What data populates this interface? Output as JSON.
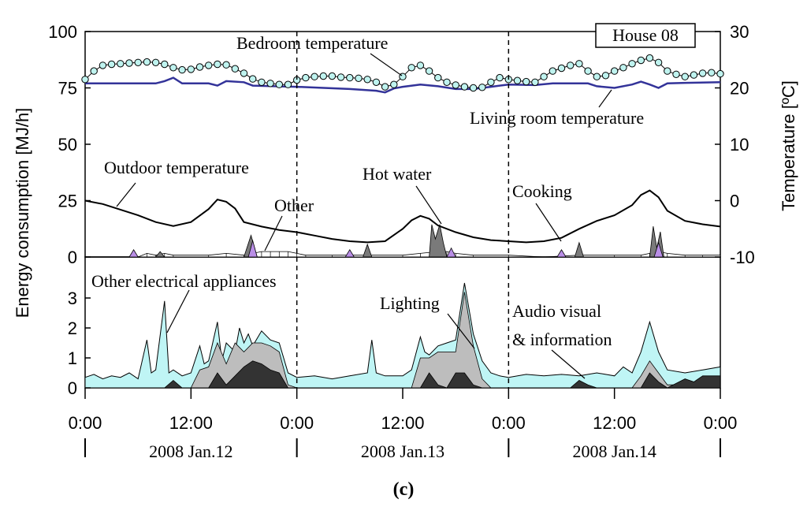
{
  "figure_label": "(c)",
  "chart_data": {
    "type": "area",
    "house_label": "House 08",
    "ylabel_left": "Energy consumption [MJ/h]",
    "ylabel_right": "Temperature [ºC]",
    "x_unit": "hours since 2008 Jan.12 0:00",
    "xlim": [
      0,
      72
    ],
    "x_tick_labels": [
      "0:00",
      "12:00",
      "0:00",
      "12:00",
      "0:00",
      "12:00",
      "0:00"
    ],
    "day_labels": [
      "2008 Jan.12",
      "2008 Jan.13",
      "2008 Jan.14"
    ],
    "day_boundaries_hours": [
      24,
      48
    ],
    "colors": {
      "bedroom_line": "#000000",
      "bedroom_marker": "#bff3ef",
      "living_line": "#333399",
      "outdoor_line": "#000000",
      "cooking_fill": "#b98ee6",
      "hot_water_fill": "#7a7a7a",
      "other_fill": "#ffffff",
      "lighting_fill": "#bdbdbd",
      "audio_fill": "#333333",
      "other_elec_fill": "#bff5f5"
    },
    "upper": {
      "ylim_left": [
        0,
        100
      ],
      "yticks_left": [
        "0",
        "25",
        "50",
        "75",
        "100"
      ],
      "ylim_right": [
        -10,
        30
      ],
      "yticks_right": [
        "-10",
        "0",
        "10",
        "20",
        "30"
      ],
      "labels": {
        "bedroom": "Bedroom temperature",
        "living": "Living room temperature",
        "outdoor": "Outdoor temperature",
        "hot_water": "Hot water",
        "other": "Other",
        "cooking": "Cooking"
      },
      "bedroom_temp": [
        [
          0,
          21.5
        ],
        [
          1,
          23
        ],
        [
          2,
          24
        ],
        [
          3,
          24.2
        ],
        [
          4,
          24.3
        ],
        [
          5,
          24.4
        ],
        [
          6,
          24.5
        ],
        [
          7,
          24.6
        ],
        [
          8,
          24.5
        ],
        [
          9,
          24.2
        ],
        [
          10,
          23.6
        ],
        [
          11,
          23.2
        ],
        [
          12,
          23.3
        ],
        [
          13,
          23.7
        ],
        [
          14,
          24
        ],
        [
          15,
          24.2
        ],
        [
          16,
          24.1
        ],
        [
          17,
          23.4
        ],
        [
          18,
          22.6
        ],
        [
          19,
          21.6
        ],
        [
          20,
          21.0
        ],
        [
          21,
          20.8
        ],
        [
          22,
          20.6
        ],
        [
          23,
          20.6
        ],
        [
          24,
          21.4
        ],
        [
          25,
          21.8
        ],
        [
          26,
          22.0
        ],
        [
          27,
          22.1
        ],
        [
          28,
          22.1
        ],
        [
          29,
          21.9
        ],
        [
          30,
          21.8
        ],
        [
          31,
          21.7
        ],
        [
          32,
          21.5
        ],
        [
          33,
          21.0
        ],
        [
          34,
          20.2
        ],
        [
          35,
          20.6
        ],
        [
          36,
          22.0
        ],
        [
          37,
          23.6
        ],
        [
          38,
          24.0
        ],
        [
          39,
          23.0
        ],
        [
          40,
          21.8
        ],
        [
          41,
          21.0
        ],
        [
          42,
          20.5
        ],
        [
          43,
          20.2
        ],
        [
          44,
          20.0
        ],
        [
          45,
          20.1
        ],
        [
          46,
          21.0
        ],
        [
          47,
          21.8
        ],
        [
          48,
          21.5
        ],
        [
          49,
          21.3
        ],
        [
          50,
          21.1
        ],
        [
          51,
          21.0
        ],
        [
          52,
          22.0
        ],
        [
          53,
          23.0
        ],
        [
          54,
          23.5
        ],
        [
          55,
          24.0
        ],
        [
          56,
          24.3
        ],
        [
          57,
          23.0
        ],
        [
          58,
          22.0
        ],
        [
          59,
          22.2
        ],
        [
          60,
          23.0
        ],
        [
          61,
          23.6
        ],
        [
          62,
          24.3
        ],
        [
          63,
          24.9
        ],
        [
          64,
          25.3
        ],
        [
          65,
          24.5
        ],
        [
          66,
          23.0
        ],
        [
          67,
          22.4
        ],
        [
          68,
          22.0
        ],
        [
          69,
          22.3
        ],
        [
          70,
          22.6
        ],
        [
          71,
          22.7
        ],
        [
          72,
          22.5
        ]
      ],
      "living_temp": [
        [
          0,
          20.8
        ],
        [
          8,
          20.8
        ],
        [
          9,
          21.2
        ],
        [
          10,
          21.8
        ],
        [
          11,
          20.8
        ],
        [
          14,
          20.8
        ],
        [
          15,
          20.4
        ],
        [
          16,
          21.2
        ],
        [
          18,
          21.0
        ],
        [
          19,
          20.4
        ],
        [
          24,
          20.2
        ],
        [
          30,
          19.8
        ],
        [
          33,
          19.5
        ],
        [
          34,
          19.2
        ],
        [
          35,
          19.9
        ],
        [
          36,
          20.2
        ],
        [
          38,
          20.6
        ],
        [
          40,
          20.3
        ],
        [
          42,
          19.8
        ],
        [
          44,
          19.8
        ],
        [
          46,
          20.2
        ],
        [
          48,
          20.6
        ],
        [
          51,
          20.5
        ],
        [
          53,
          20.8
        ],
        [
          57,
          20.8
        ],
        [
          58,
          20.3
        ],
        [
          60,
          20.0
        ],
        [
          62,
          20.6
        ],
        [
          63,
          21.1
        ],
        [
          64,
          20.6
        ],
        [
          65,
          20.0
        ],
        [
          66,
          20.8
        ],
        [
          68,
          20.9
        ],
        [
          72,
          21.0
        ]
      ],
      "outdoor_temp": [
        [
          0,
          0
        ],
        [
          2,
          -0.6
        ],
        [
          4,
          -1.6
        ],
        [
          6,
          -2.6
        ],
        [
          8,
          -3.8
        ],
        [
          10,
          -4.5
        ],
        [
          12,
          -3.8
        ],
        [
          14,
          -1.5
        ],
        [
          15,
          0.2
        ],
        [
          16,
          -0.2
        ],
        [
          17,
          -1.4
        ],
        [
          18,
          -3.8
        ],
        [
          20,
          -4.6
        ],
        [
          22,
          -5.2
        ],
        [
          24,
          -5.6
        ],
        [
          26,
          -6.2
        ],
        [
          28,
          -6.8
        ],
        [
          30,
          -7.2
        ],
        [
          32,
          -7.4
        ],
        [
          34,
          -7.2
        ],
        [
          36,
          -5.0
        ],
        [
          37,
          -3.5
        ],
        [
          38,
          -2.7
        ],
        [
          39,
          -3.2
        ],
        [
          40,
          -4.4
        ],
        [
          42,
          -5.6
        ],
        [
          44,
          -6.5
        ],
        [
          46,
          -7.0
        ],
        [
          48,
          -7.2
        ],
        [
          50,
          -7.4
        ],
        [
          52,
          -7.2
        ],
        [
          54,
          -6.6
        ],
        [
          56,
          -5.0
        ],
        [
          58,
          -3.6
        ],
        [
          60,
          -2.6
        ],
        [
          62,
          -0.8
        ],
        [
          63,
          1.0
        ],
        [
          64,
          1.8
        ],
        [
          65,
          0.6
        ],
        [
          66,
          -1.8
        ],
        [
          68,
          -3.6
        ],
        [
          70,
          -4.2
        ],
        [
          72,
          -4.6
        ]
      ],
      "cooking": [
        [
          0,
          0
        ],
        [
          5,
          0
        ],
        [
          5.5,
          4
        ],
        [
          6,
          0
        ],
        [
          18.5,
          0
        ],
        [
          19,
          9
        ],
        [
          19.5,
          0
        ],
        [
          29.5,
          0
        ],
        [
          30,
          4
        ],
        [
          30.5,
          0
        ],
        [
          41,
          0
        ],
        [
          41.5,
          5
        ],
        [
          42,
          0
        ],
        [
          53.5,
          0
        ],
        [
          54,
          4
        ],
        [
          54.5,
          0
        ],
        [
          64.5,
          0
        ],
        [
          65,
          8
        ],
        [
          65.5,
          0
        ],
        [
          72,
          0
        ]
      ],
      "hot_water": [
        [
          0,
          0
        ],
        [
          8,
          0
        ],
        [
          8.5,
          3
        ],
        [
          9,
          0
        ],
        [
          18,
          0
        ],
        [
          18.8,
          12
        ],
        [
          19.5,
          0
        ],
        [
          31.5,
          0
        ],
        [
          32,
          7
        ],
        [
          32.5,
          0
        ],
        [
          39,
          0
        ],
        [
          39.3,
          18
        ],
        [
          39.7,
          10
        ],
        [
          40.2,
          18
        ],
        [
          40.6,
          8
        ],
        [
          41,
          0
        ],
        [
          55.5,
          0
        ],
        [
          56,
          8
        ],
        [
          56.5,
          0
        ],
        [
          64,
          0
        ],
        [
          64.4,
          17
        ],
        [
          64.8,
          5
        ],
        [
          65.2,
          14
        ],
        [
          65.6,
          0
        ],
        [
          72,
          0
        ]
      ],
      "other_elec_misc": [
        [
          0,
          0
        ],
        [
          6,
          0
        ],
        [
          7,
          2
        ],
        [
          8,
          1
        ],
        [
          9,
          2
        ],
        [
          10,
          1
        ],
        [
          14,
          1
        ],
        [
          16,
          2
        ],
        [
          18,
          1
        ],
        [
          19,
          2
        ],
        [
          20,
          3
        ],
        [
          21,
          3
        ],
        [
          22,
          3
        ],
        [
          23,
          3
        ],
        [
          24,
          2
        ],
        [
          25,
          1
        ],
        [
          28,
          1
        ],
        [
          30,
          1
        ],
        [
          32,
          1
        ],
        [
          36,
          1
        ],
        [
          38,
          2
        ],
        [
          40,
          3
        ],
        [
          41,
          3
        ],
        [
          42,
          2
        ],
        [
          44,
          1
        ],
        [
          48,
          1
        ],
        [
          52,
          0
        ],
        [
          56,
          1
        ],
        [
          60,
          1
        ],
        [
          63,
          1
        ],
        [
          64,
          2
        ],
        [
          65,
          3
        ],
        [
          66,
          2
        ],
        [
          68,
          1
        ],
        [
          70,
          1
        ],
        [
          72,
          1
        ]
      ]
    },
    "lower": {
      "ylim": [
        0,
        4
      ],
      "yticks": [
        "0",
        "1",
        "2",
        "3"
      ],
      "labels": {
        "other_elec": "Other electrical appliances",
        "lighting": "Lighting",
        "audio_l1": "Audio visual",
        "audio_l2": "& information"
      },
      "total_other_elec": [
        [
          0,
          0.35
        ],
        [
          1,
          0.45
        ],
        [
          2,
          0.3
        ],
        [
          3,
          0.4
        ],
        [
          4,
          0.35
        ],
        [
          5,
          0.5
        ],
        [
          6,
          0.3
        ],
        [
          7,
          1.6
        ],
        [
          7.5,
          0.5
        ],
        [
          8,
          0.6
        ],
        [
          9,
          2.9
        ],
        [
          9.5,
          0.5
        ],
        [
          10,
          0.6
        ],
        [
          11,
          0.4
        ],
        [
          12,
          0.5
        ],
        [
          13,
          1.4
        ],
        [
          13.5,
          0.8
        ],
        [
          14,
          0.9
        ],
        [
          15,
          2.2
        ],
        [
          15.5,
          0.9
        ],
        [
          16,
          1.5
        ],
        [
          17,
          1.2
        ],
        [
          17.5,
          2.0
        ],
        [
          18,
          1.5
        ],
        [
          18.5,
          1.8
        ],
        [
          19,
          1.4
        ],
        [
          20,
          1.9
        ],
        [
          21,
          1.6
        ],
        [
          22,
          1.5
        ],
        [
          23,
          0.5
        ],
        [
          24,
          0.35
        ],
        [
          26,
          0.4
        ],
        [
          28,
          0.3
        ],
        [
          30,
          0.4
        ],
        [
          32,
          0.5
        ],
        [
          32.5,
          1.6
        ],
        [
          33,
          0.5
        ],
        [
          34,
          0.4
        ],
        [
          36,
          0.4
        ],
        [
          37,
          0.6
        ],
        [
          38,
          1.7
        ],
        [
          38.5,
          1.2
        ],
        [
          39,
          1.1
        ],
        [
          40,
          1.4
        ],
        [
          41,
          1.5
        ],
        [
          42,
          1.6
        ],
        [
          43,
          3.5
        ],
        [
          44,
          1.8
        ],
        [
          45,
          0.9
        ],
        [
          46,
          0.5
        ],
        [
          47,
          0.4
        ],
        [
          48,
          0.35
        ],
        [
          50,
          0.45
        ],
        [
          52,
          0.4
        ],
        [
          54,
          0.45
        ],
        [
          56,
          0.4
        ],
        [
          58,
          0.5
        ],
        [
          60,
          0.4
        ],
        [
          61,
          0.7
        ],
        [
          62,
          0.5
        ],
        [
          63,
          1.2
        ],
        [
          64,
          2.2
        ],
        [
          65,
          1.2
        ],
        [
          66,
          0.6
        ],
        [
          68,
          0.5
        ],
        [
          70,
          0.6
        ],
        [
          72,
          0.7
        ]
      ],
      "lighting_series": [
        [
          0,
          0
        ],
        [
          12,
          0
        ],
        [
          13,
          0.6
        ],
        [
          14,
          0.7
        ],
        [
          15,
          1.5
        ],
        [
          16,
          0.8
        ],
        [
          17,
          1.5
        ],
        [
          18,
          1.2
        ],
        [
          19,
          1.5
        ],
        [
          20,
          1.5
        ],
        [
          21,
          1.4
        ],
        [
          22,
          1.2
        ],
        [
          23,
          0.1
        ],
        [
          24,
          0
        ],
        [
          37,
          0
        ],
        [
          38,
          1.0
        ],
        [
          39,
          1.0
        ],
        [
          40,
          1.2
        ],
        [
          41,
          1.2
        ],
        [
          42,
          1.2
        ],
        [
          43,
          3.2
        ],
        [
          44,
          1.4
        ],
        [
          45,
          0.3
        ],
        [
          46,
          0
        ],
        [
          62,
          0
        ],
        [
          63,
          0.4
        ],
        [
          64,
          0.9
        ],
        [
          65,
          0.5
        ],
        [
          66,
          0.1
        ],
        [
          72,
          0.1
        ]
      ],
      "audio_visual": [
        [
          0,
          0
        ],
        [
          9,
          0
        ],
        [
          10,
          0.25
        ],
        [
          11,
          0
        ],
        [
          14,
          0
        ],
        [
          15,
          0.5
        ],
        [
          16,
          0.1
        ],
        [
          17,
          0.4
        ],
        [
          18,
          0.7
        ],
        [
          19,
          0.9
        ],
        [
          20,
          0.8
        ],
        [
          21,
          0.6
        ],
        [
          22,
          0.5
        ],
        [
          23,
          0
        ],
        [
          38,
          0
        ],
        [
          39,
          0.5
        ],
        [
          40,
          0.1
        ],
        [
          41,
          0
        ],
        [
          42,
          0.5
        ],
        [
          43,
          0.5
        ],
        [
          44,
          0.1
        ],
        [
          45,
          0
        ],
        [
          55,
          0
        ],
        [
          56,
          0.25
        ],
        [
          57,
          0.1
        ],
        [
          58,
          0
        ],
        [
          63,
          0
        ],
        [
          64,
          0.5
        ],
        [
          65,
          0.2
        ],
        [
          66,
          0
        ],
        [
          68,
          0.3
        ],
        [
          69,
          0.2
        ],
        [
          70,
          0.4
        ],
        [
          71,
          0.4
        ],
        [
          72,
          0.4
        ]
      ]
    }
  }
}
